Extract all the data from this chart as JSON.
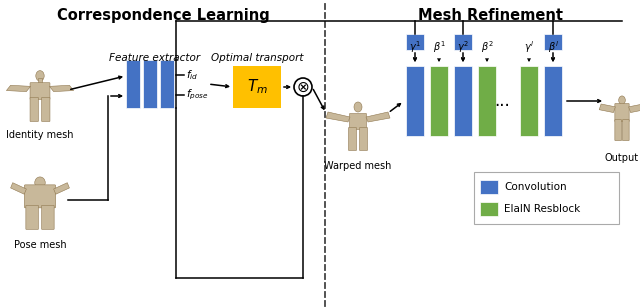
{
  "bg_color": "#ffffff",
  "title_left": "Correspondence Learning",
  "title_right": "Mesh Refinement",
  "title_fontsize": 10.5,
  "blue_color": "#4472C4",
  "green_color": "#70AD47",
  "orange_color": "#FFC000",
  "text_color": "#000000",
  "labels": {
    "identity_mesh": "Identity mesh",
    "pose_mesh": "Pose mesh",
    "feature_extractor": "Feature extractor",
    "optimal_transport": "Optimal transport",
    "f_id": "$f_{id}$",
    "f_pose": "$f_{pose}$",
    "T_m": "$T_m$",
    "warped_mesh": "Warped mesh",
    "output": "Output",
    "convolution": "Convolution",
    "elain_resblock": "ElaIN Resblock",
    "gamma1": "$\\gamma^1$",
    "beta1": "$\\beta^1$",
    "gamma2": "$\\gamma^2$",
    "beta2": "$\\beta^2$",
    "gammal": "$\\gamma^l$",
    "betal": "$\\beta^l$"
  }
}
